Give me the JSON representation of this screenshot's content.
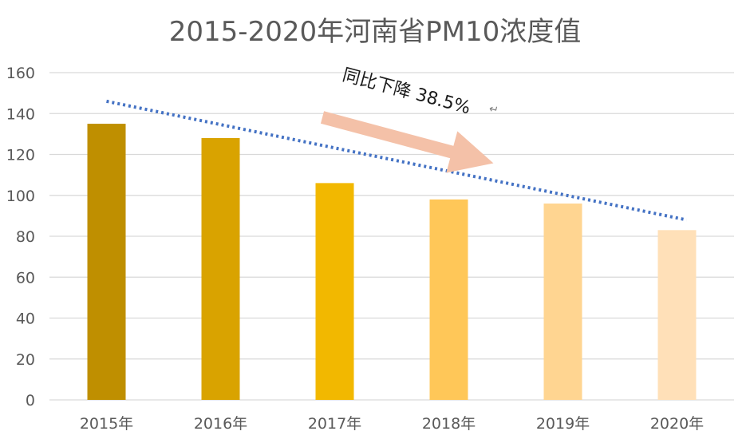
{
  "chart_data": {
    "type": "bar",
    "title": "2015-2020年河南省PM10浓度值",
    "categories": [
      "2015年",
      "2016年",
      "2017年",
      "2018年",
      "2019年",
      "2020年"
    ],
    "values": [
      135,
      128,
      106,
      98,
      96,
      83
    ],
    "bar_colors": [
      "#BF8F00",
      "#D9A300",
      "#F2B800",
      "#FFC758",
      "#FFD591",
      "#FFE0B8"
    ],
    "ylim": [
      0,
      160
    ],
    "yticks": [
      0,
      20,
      40,
      60,
      80,
      100,
      120,
      140,
      160
    ],
    "grid": true,
    "xlabel": "",
    "ylabel": "",
    "trendline": {
      "style": "dotted",
      "color": "#4472C4",
      "start_value": 146,
      "end_value": 88
    },
    "annotation": {
      "text": "同比下降 38.5%",
      "arrow_color": "#F4C1A8"
    }
  }
}
